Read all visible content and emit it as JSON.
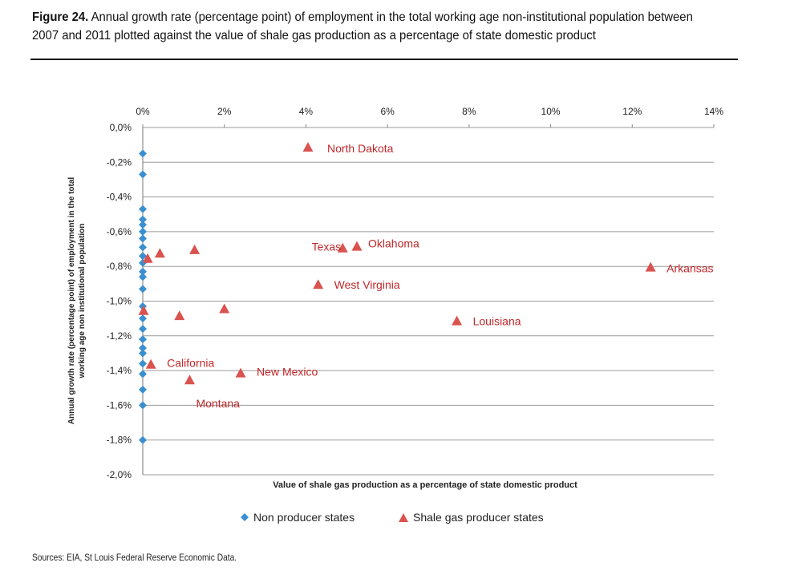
{
  "figure": {
    "label": "Figure 24.",
    "title": "Annual growth rate (percentage point) of employment in the total working age non-institutional population between 2007 and 2011 plotted against the value of shale gas production as a percentage of state domestic product"
  },
  "sources": "Sources: EIA, St Louis Federal Reserve Economic Data.",
  "colors": {
    "non_producer": "#3a8fd0",
    "producer": "#d9534f",
    "label": "#c0282b",
    "grid": "#9a9a9a"
  },
  "chart_data": {
    "type": "scatter",
    "xlabel": "Value of shale gas production as a percentage of state domestic product",
    "ylabel_lines": [
      "Annual growth rate (percentage point) of employment in the total",
      "working age non institutional population"
    ],
    "xlim": [
      0,
      14
    ],
    "ylim": [
      -2.0,
      0.0
    ],
    "x_ticks": [
      0,
      2,
      4,
      6,
      8,
      10,
      12,
      14
    ],
    "x_tick_labels": [
      "0%",
      "2%",
      "4%",
      "6%",
      "8%",
      "10%",
      "12%",
      "14%"
    ],
    "y_ticks": [
      0.0,
      -0.2,
      -0.4,
      -0.6,
      -0.8,
      -1.0,
      -1.2,
      -1.4,
      -1.6,
      -1.8,
      -2.0
    ],
    "y_tick_labels": [
      "0,0%",
      "-0,2%",
      "-0,4%",
      "-0,6%",
      "-0,8%",
      "-1,0%",
      "-1,2%",
      "-1,4%",
      "-1,6%",
      "-1,8%",
      "-2,0%"
    ],
    "x_axis_position": "top",
    "grid": "horizontal",
    "legend_position": "bottom",
    "series": [
      {
        "name": "Non producer states",
        "marker": "diamond",
        "points": [
          {
            "x": 0,
            "y": -0.15
          },
          {
            "x": 0,
            "y": -0.27
          },
          {
            "x": 0,
            "y": -0.47
          },
          {
            "x": 0,
            "y": -0.53
          },
          {
            "x": 0,
            "y": -0.56
          },
          {
            "x": 0,
            "y": -0.6
          },
          {
            "x": 0,
            "y": -0.64
          },
          {
            "x": 0,
            "y": -0.69
          },
          {
            "x": 0,
            "y": -0.74
          },
          {
            "x": 0,
            "y": -0.78
          },
          {
            "x": 0,
            "y": -0.83
          },
          {
            "x": 0,
            "y": -0.86
          },
          {
            "x": 0,
            "y": -0.93
          },
          {
            "x": 0,
            "y": -1.03
          },
          {
            "x": 0,
            "y": -1.1
          },
          {
            "x": 0,
            "y": -1.16
          },
          {
            "x": 0,
            "y": -1.22
          },
          {
            "x": 0,
            "y": -1.27
          },
          {
            "x": 0,
            "y": -1.3
          },
          {
            "x": 0,
            "y": -1.36
          },
          {
            "x": 0,
            "y": -1.42
          },
          {
            "x": 0,
            "y": -1.51
          },
          {
            "x": 0,
            "y": -1.6
          },
          {
            "x": 0,
            "y": -1.8
          }
        ]
      },
      {
        "name": "Shale gas producer states",
        "marker": "triangle",
        "points": [
          {
            "x": 4.05,
            "y": -0.12,
            "label": "North Dakota"
          },
          {
            "x": 4.9,
            "y": -0.7,
            "label": "Texas"
          },
          {
            "x": 5.25,
            "y": -0.69,
            "label": "Oklahoma"
          },
          {
            "x": 12.45,
            "y": -0.81,
            "label": "Arkansas"
          },
          {
            "x": 4.3,
            "y": -0.91,
            "label": "West Virginia"
          },
          {
            "x": 7.7,
            "y": -1.12,
            "label": "Louisiana"
          },
          {
            "x": 0.2,
            "y": -1.37,
            "label": "California"
          },
          {
            "x": 2.4,
            "y": -1.42,
            "label": "New Mexico"
          },
          {
            "x": 1.15,
            "y": -1.46,
            "label": "Montana"
          },
          {
            "x": 0.12,
            "y": -0.76
          },
          {
            "x": 0.42,
            "y": -0.73
          },
          {
            "x": 1.27,
            "y": -0.71
          },
          {
            "x": 2.0,
            "y": -1.05
          },
          {
            "x": 0.9,
            "y": -1.09
          },
          {
            "x": 0.02,
            "y": -1.06
          }
        ]
      }
    ]
  }
}
